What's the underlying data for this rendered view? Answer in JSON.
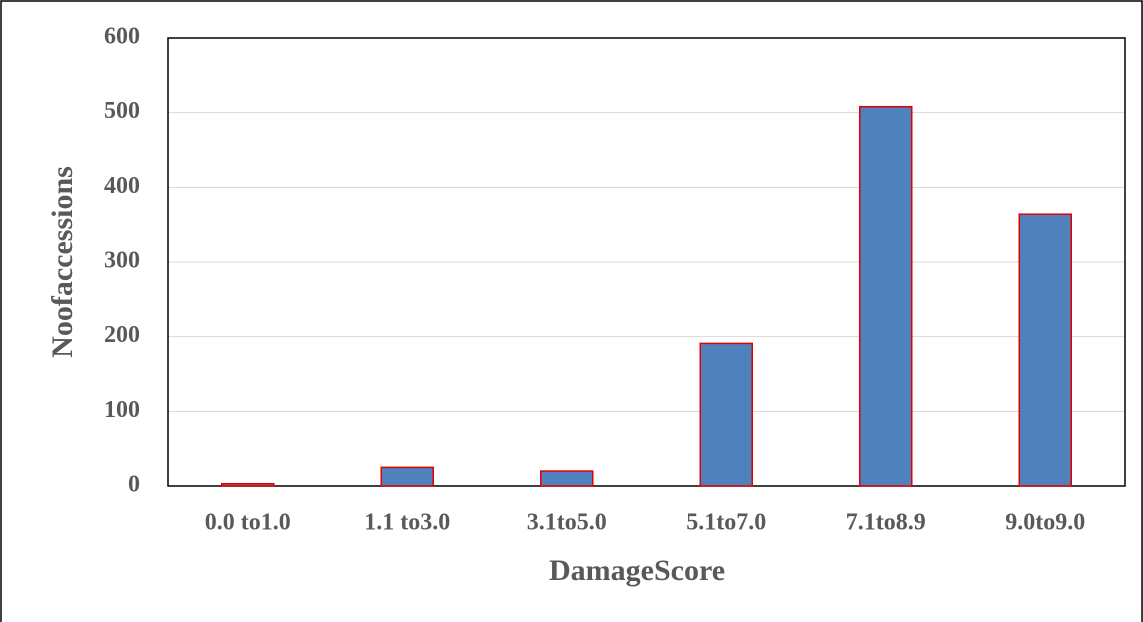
{
  "chart_data": {
    "type": "bar",
    "x_label": "DamageScore",
    "y_label": "Noofaccessions",
    "categories": [
      "0.0 to1.0",
      "1.1 to3.0",
      "3.1to5.0",
      "5.1to7.0",
      "7.1to8.9",
      "9.0to9.0"
    ],
    "values": [
      3,
      25,
      20,
      191,
      508,
      364
    ],
    "color": "#4f81bd",
    "edge_color": "#e00000",
    "ylim": [
      0,
      600
    ],
    "yticks": [
      0,
      100,
      200,
      300,
      400,
      500,
      600
    ],
    "grid": true
  }
}
